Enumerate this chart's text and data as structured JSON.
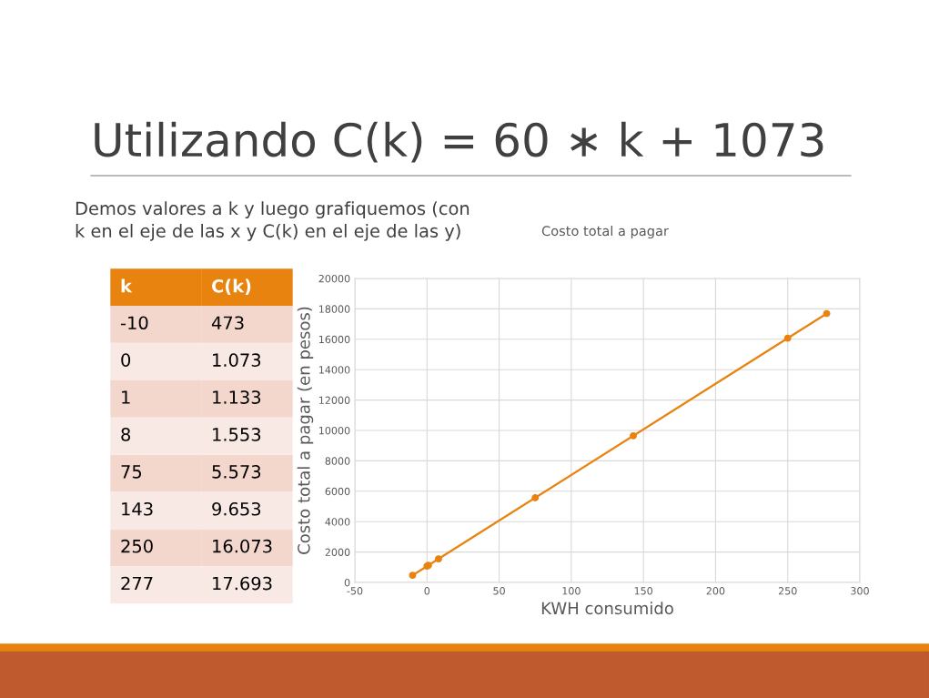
{
  "chart_data": [
    {
      "type": "other",
      "title": "Utilizando C(k) = 60 ∗ k + 1073",
      "subtitle": "Demos valores a k y luego grafiquemos (con\nk en el eje de las x y C(k) en el eje de las y)",
      "annotations": [
        "k",
        "C(k)",
        "-10",
        "473",
        "0",
        "1.073",
        "1",
        "1.133",
        "8",
        "1.553",
        "75",
        "5.573",
        "143",
        "9.653",
        "250",
        "16.073",
        "277",
        "17.693"
      ]
    },
    {
      "type": "scatter",
      "title": "Costo total a pagar",
      "xlabel": "KWH consumido",
      "ylabel": "Costo total a pagar (en pesos)",
      "x": [
        -10,
        0,
        1,
        8,
        75,
        143,
        250,
        277
      ],
      "series": [
        {
          "color": "#e8830f",
          "values": [
            470,
            1070,
            1130,
            1550,
            5570,
            9650,
            16070,
            17690
          ]
        },
        {
          "type": "line",
          "marker": "none",
          "color": "#e8830f",
          "x": [
            -10,
            277
          ],
          "values": [
            470,
            17690
          ]
        }
      ],
      "xlim": [
        -50,
        300
      ],
      "xticks": [
        -50,
        0,
        50,
        100,
        150,
        200,
        250,
        300
      ],
      "ylim": [
        0,
        20000
      ],
      "yticks": [
        0,
        2000,
        4000,
        6000,
        8000,
        10000,
        12000,
        14000,
        16000,
        18000,
        20000
      ],
      "grid": true,
      "marker": "circle"
    }
  ]
}
